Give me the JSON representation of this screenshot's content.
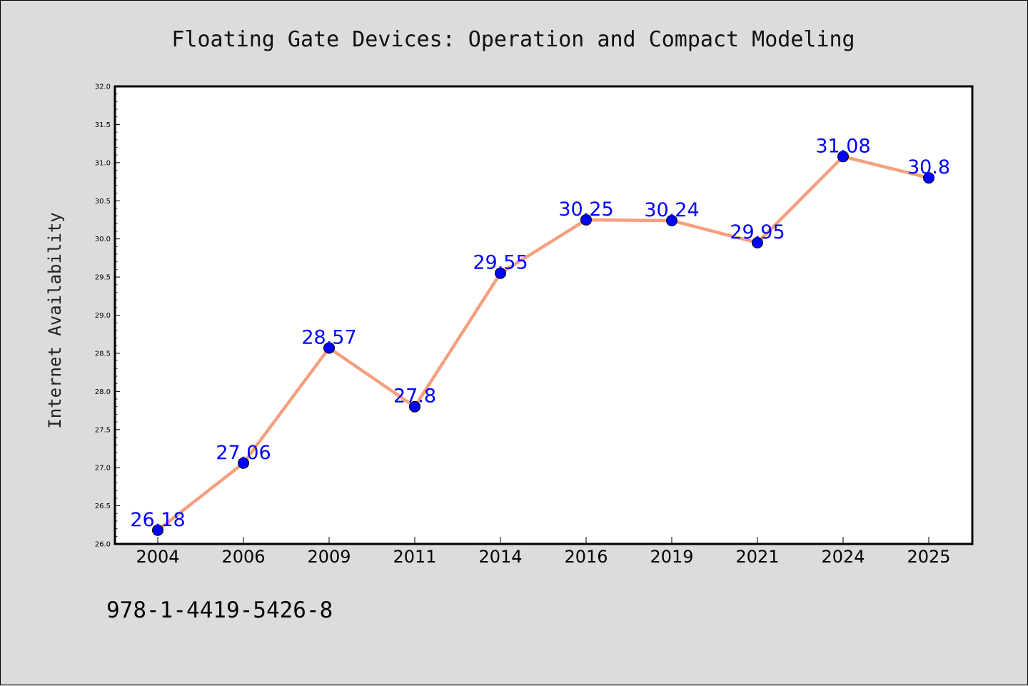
{
  "title": "Floating Gate Devices: Operation and Compact Modeling",
  "footer_text": "978-1-4419-5426-8",
  "chart_data": {
    "type": "line",
    "title": "Floating Gate Devices: Operation and Compact Modeling",
    "xlabel": "",
    "ylabel": "Internet Availability",
    "categories": [
      "2004",
      "2006",
      "2009",
      "2011",
      "2014",
      "2016",
      "2019",
      "2021",
      "2024",
      "2025"
    ],
    "values": [
      26.18,
      27.06,
      28.57,
      27.8,
      29.55,
      30.25,
      30.24,
      29.95,
      31.08,
      30.8
    ],
    "data_labels": [
      "26.18",
      "27.06",
      "28.57",
      "27.8",
      "29.55",
      "30.25",
      "30.24",
      "29.95",
      "31.08",
      "30.8"
    ],
    "ylim": [
      26.0,
      32.0
    ],
    "yticks": [
      "26.0",
      "26.5",
      "27.0",
      "27.5",
      "28.0",
      "28.5",
      "29.0",
      "29.5",
      "30.0",
      "30.5",
      "31.0",
      "31.5",
      "32.0"
    ],
    "grid": false,
    "legend": "none",
    "line_color": "#f4a07e",
    "marker_color": "#0000ff",
    "label_color": "#0000ff"
  }
}
